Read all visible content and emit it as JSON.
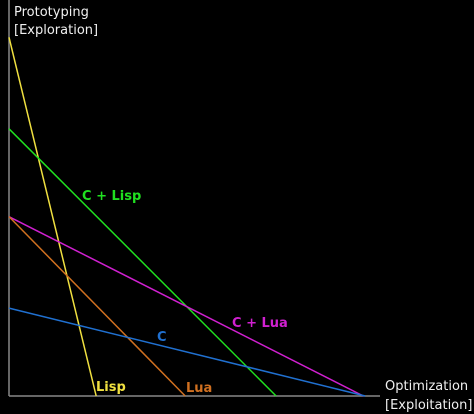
{
  "chart_data": {
    "type": "line",
    "y_label": [
      "Prototyping",
      "[Exploration]"
    ],
    "x_label": [
      "Optimization",
      "[Exploitation]"
    ],
    "xlim": [
      0,
      100
    ],
    "ylim": [
      0,
      100
    ],
    "series": [
      {
        "name": "Lisp",
        "color": "#f0e040",
        "x": [
          0,
          23.5
        ],
        "values": [
          98,
          0
        ]
      },
      {
        "name": "C + Lisp",
        "color": "#20e020",
        "x": [
          0,
          72
        ],
        "values": [
          73,
          0
        ]
      },
      {
        "name": "C + Lua",
        "color": "#d020d0",
        "x": [
          0,
          95.5
        ],
        "values": [
          49,
          0
        ]
      },
      {
        "name": "Lua",
        "color": "#d07020",
        "x": [
          0,
          47.5
        ],
        "values": [
          49,
          0
        ]
      },
      {
        "name": "C",
        "color": "#2070d0",
        "x": [
          0,
          96
        ],
        "values": [
          24,
          0
        ]
      }
    ]
  }
}
